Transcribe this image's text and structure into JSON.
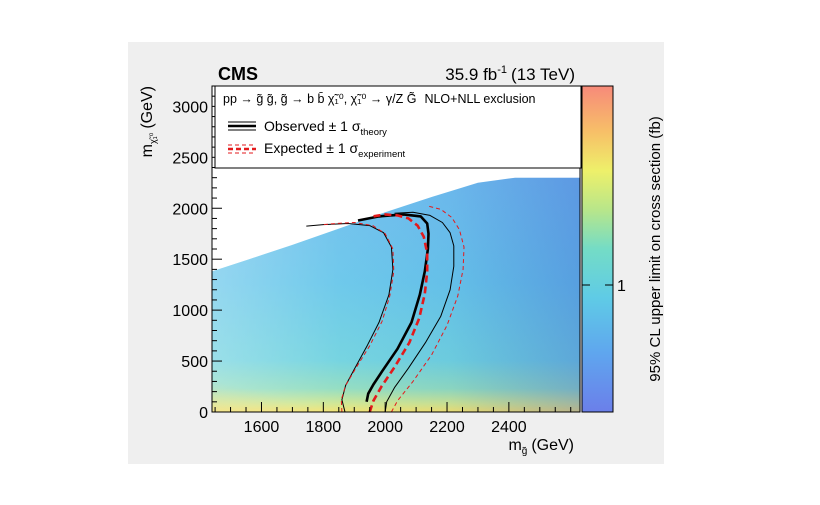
{
  "chart_data": {
    "type": "heatmap",
    "experiment": "CMS",
    "luminosity_text": "35.9 fb",
    "lumi_superscript": "-1",
    "energy_text": "(13 TeV)",
    "process_text": "pp → g̃ g̃, g̃ → b b̄ χ̃₁⁰, χ̃₁⁰ → γ/Z G̃",
    "exclusion_text": "NLO+NLL exclusion",
    "xlabel": "m",
    "xlabel_sub": "g̃",
    "xlabel_unit": "(GeV)",
    "ylabel": "m",
    "ylabel_sub": "χ̃₁⁰",
    "ylabel_unit": "(GeV)",
    "zlabel": "95% CL upper limit on cross section (fb)",
    "xlim": [
      1440,
      2630
    ],
    "ylim": [
      0,
      3200
    ],
    "x_ticks": [
      1600,
      1800,
      2000,
      2200,
      2400
    ],
    "y_ticks": [
      0,
      500,
      1000,
      1500,
      2000,
      2500,
      3000
    ],
    "z_tick_label": "1",
    "grid": false,
    "legend_position": "top",
    "legend": [
      {
        "label": "Observed ± 1 σ",
        "subscript": "theory",
        "style": "solid",
        "color": "#000000"
      },
      {
        "label": "Expected ± 1 σ",
        "subscript": "experiment",
        "style": "dashed",
        "color": "#e31a1c"
      }
    ],
    "series": [
      {
        "style": "observed-central",
        "color": "#000000",
        "x": [
          1940,
          1945,
          1962,
          1990,
          2040,
          2085,
          2112,
          2128,
          2138,
          2140,
          2136,
          2115,
          2060,
          1980,
          1912
        ],
        "y": [
          100,
          180,
          270,
          400,
          620,
          880,
          1150,
          1380,
          1600,
          1750,
          1850,
          1920,
          1940,
          1920,
          1880
        ]
      },
      {
        "style": "observed-minus",
        "color": "#000000",
        "x": [
          1870,
          1860,
          1872,
          1900,
          1940,
          1980,
          2012,
          2025,
          2020,
          1995,
          1950,
          1880,
          1800,
          1745
        ],
        "y": [
          0,
          120,
          260,
          420,
          640,
          880,
          1150,
          1400,
          1620,
          1760,
          1830,
          1850,
          1840,
          1825
        ]
      },
      {
        "style": "observed-plus",
        "color": "#000000",
        "x": [
          2000,
          2005,
          2030,
          2075,
          2130,
          2180,
          2210,
          2222,
          2222,
          2210,
          2185,
          2145,
          2090,
          2030
        ],
        "y": [
          0,
          100,
          240,
          430,
          680,
          940,
          1200,
          1430,
          1630,
          1760,
          1860,
          1930,
          1960,
          1950
        ]
      },
      {
        "style": "expected-central",
        "color": "#e31a1c",
        "x": [
          1950,
          1962,
          1988,
          2030,
          2078,
          2110,
          2128,
          2136,
          2136,
          2125,
          2105,
          2075,
          2040,
          2000,
          1960
        ],
        "y": [
          0,
          110,
          250,
          440,
          680,
          920,
          1160,
          1380,
          1560,
          1720,
          1830,
          1900,
          1930,
          1940,
          1920
        ]
      },
      {
        "style": "expected-minus",
        "color": "#e31a1c",
        "x": [
          1860,
          1858,
          1872,
          1905,
          1950,
          1990,
          2015,
          2028,
          2025,
          2000,
          1960,
          1900,
          1840,
          1800
        ],
        "y": [
          0,
          120,
          260,
          430,
          650,
          890,
          1140,
          1380,
          1600,
          1750,
          1830,
          1860,
          1850,
          1840
        ]
      },
      {
        "style": "expected-plus",
        "color": "#e31a1c",
        "x": [
          2020,
          2040,
          2090,
          2150,
          2200,
          2235,
          2252,
          2255,
          2240,
          2215,
          2180,
          2140
        ],
        "y": [
          0,
          110,
          300,
          560,
          850,
          1140,
          1400,
          1620,
          1790,
          1910,
          1990,
          2020
        ]
      }
    ]
  }
}
